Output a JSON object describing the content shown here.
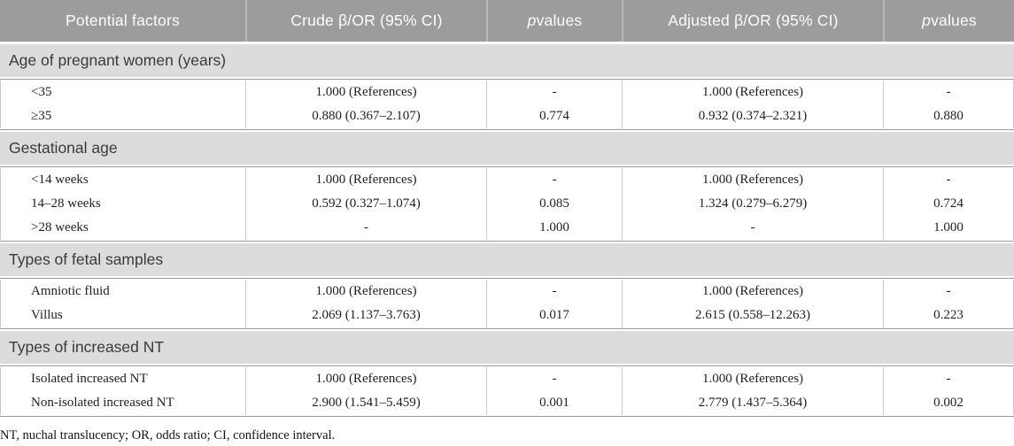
{
  "colors": {
    "header_bg": "#9c9c9c",
    "header_text": "#fdfdfd",
    "section_bg": "#dcdcdc",
    "section_text": "#3a3a3a",
    "body_text": "#1f1f1f",
    "block_border": "#9a9a9a",
    "cell_divider": "#c9c9c9",
    "header_divider": "#b8b8b8"
  },
  "header": {
    "potential_factors": "Potential factors",
    "crude": "Crude β/OR (95% CI)",
    "p_italic": "p",
    "p_rest": " values",
    "adjusted": "Adjusted β/OR (95% CI)"
  },
  "sections": [
    {
      "label": "Age of pregnant women (years)",
      "rows": [
        [
          "<35",
          "1.000 (References)",
          "-",
          "1.000 (References)",
          "-"
        ],
        [
          "≥35",
          "0.880 (0.367–2.107)",
          "0.774",
          "0.932 (0.374–2.321)",
          "0.880"
        ]
      ]
    },
    {
      "label": "Gestational age",
      "rows": [
        [
          "<14 weeks",
          "1.000 (References)",
          "-",
          "1.000 (References)",
          "-"
        ],
        [
          "14–28 weeks",
          "0.592 (0.327–1.074)",
          "0.085",
          "1.324 (0.279–6.279)",
          "0.724"
        ],
        [
          ">28 weeks",
          "-",
          "1.000",
          "-",
          "1.000"
        ]
      ]
    },
    {
      "label": "Types of fetal samples",
      "rows": [
        [
          "Amniotic fluid",
          "1.000 (References)",
          "-",
          "1.000 (References)",
          "-"
        ],
        [
          "Villus",
          "2.069 (1.137–3.763)",
          "0.017",
          "2.615 (0.558–12.263)",
          "0.223"
        ]
      ]
    },
    {
      "label": "Types of increased NT",
      "rows": [
        [
          "Isolated increased NT",
          "1.000 (References)",
          "-",
          "1.000 (References)",
          "-"
        ],
        [
          "Non-isolated increased NT",
          "2.900 (1.541–5.459)",
          "0.001",
          "2.779 (1.437–5.364)",
          "0.002"
        ]
      ]
    }
  ],
  "footnote": "NT, nuchal translucency; OR, odds ratio; CI, confidence interval."
}
